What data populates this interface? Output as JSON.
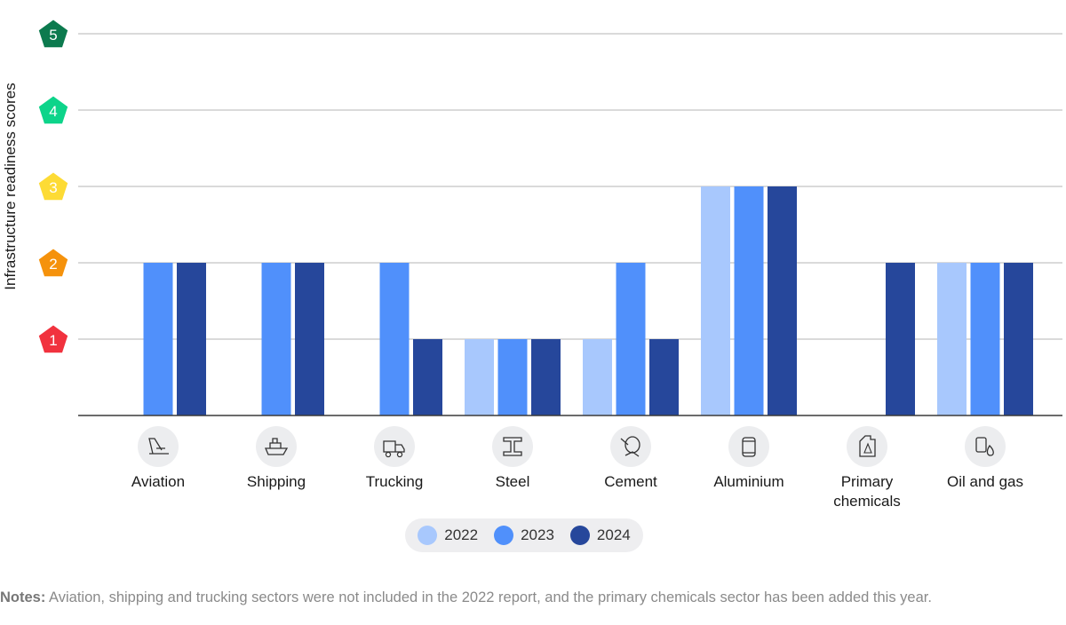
{
  "chart_data": {
    "type": "bar",
    "ylabel": "Infrastructure readiness scores",
    "ylim": [
      0,
      5
    ],
    "yticks": [
      1,
      2,
      3,
      4,
      5
    ],
    "ytick_colors": [
      "#f1323e",
      "#f5920c",
      "#fddb35",
      "#0dd48a",
      "#0c7a4e"
    ],
    "grid": true,
    "legend_position": "bottom-center",
    "categories": [
      "Aviation",
      "Shipping",
      "Trucking",
      "Steel",
      "Cement",
      "Aluminium",
      "Primary chemicals",
      "Oil and gas"
    ],
    "category_lines": [
      [
        "Aviation"
      ],
      [
        "Shipping"
      ],
      [
        "Trucking"
      ],
      [
        "Steel"
      ],
      [
        "Cement"
      ],
      [
        "Aluminium"
      ],
      [
        "Primary",
        "chemicals"
      ],
      [
        "Oil and gas"
      ]
    ],
    "category_icons": [
      "airplane-tail-icon",
      "ship-icon",
      "truck-icon",
      "steel-beam-icon",
      "cement-mixer-icon",
      "aluminium-can-icon",
      "chemical-canister-icon",
      "oil-barrel-icon"
    ],
    "series": [
      {
        "name": "2022",
        "color": "#a8c8fd",
        "values": [
          null,
          null,
          null,
          1,
          1,
          3,
          null,
          2
        ]
      },
      {
        "name": "2023",
        "color": "#5090fb",
        "values": [
          2,
          2,
          2,
          1,
          2,
          3,
          null,
          2
        ]
      },
      {
        "name": "2024",
        "color": "#26479b",
        "values": [
          2,
          2,
          1,
          1,
          1,
          3,
          2,
          2
        ]
      }
    ]
  },
  "notes": {
    "label": "Notes:",
    "text": " Aviation, shipping and trucking sectors were not included in the 2022 report, and the primary chemicals sector has been added this year."
  }
}
